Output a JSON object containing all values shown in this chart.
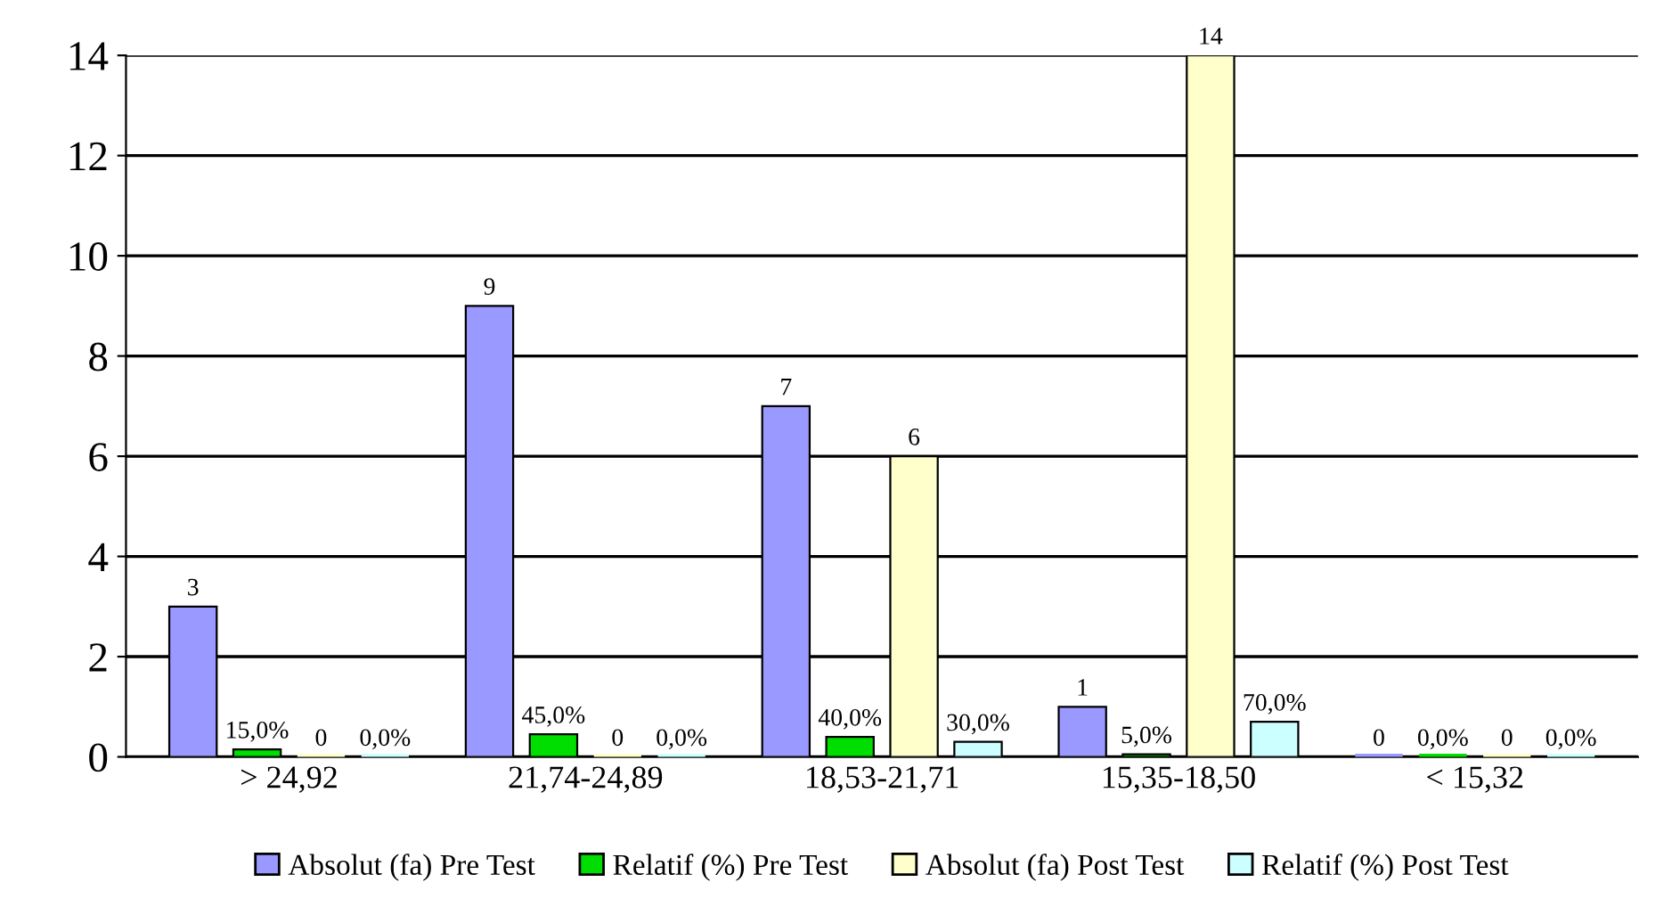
{
  "chart_data": {
    "type": "bar",
    "categories": [
      "> 24,92",
      "21,74-24,89",
      "18,53-21,71",
      "15,35-18,50",
      "< 15,32"
    ],
    "series": [
      {
        "name": "Absolut (fa) Pre Test",
        "color": "#9999ff",
        "values": [
          3,
          9,
          7,
          1,
          0
        ],
        "value_labels": [
          "3",
          "9",
          "7",
          "1",
          "0"
        ]
      },
      {
        "name": "Relatif (%) Pre Test",
        "color": "#00dd00",
        "values": [
          0.15,
          0.45,
          0.4,
          0.05,
          0
        ],
        "value_labels": [
          "15,0%",
          "45,0%",
          "40,0%",
          "5,0%",
          "0,0%"
        ]
      },
      {
        "name": "Absolut (fa) Post Test",
        "color": "#ffffcc",
        "values": [
          0,
          0,
          6,
          14,
          0
        ],
        "value_labels": [
          "0",
          "0",
          "6",
          "14",
          "0"
        ]
      },
      {
        "name": "Relatif (%) Post Test",
        "color": "#ccffff",
        "values": [
          0,
          0,
          0.3,
          0.7,
          0
        ],
        "value_labels": [
          "0,0%",
          "0,0%",
          "30,0%",
          "70,0%",
          "0,0%"
        ]
      }
    ],
    "ylim": [
      0,
      14
    ],
    "yticks": [
      0,
      2,
      4,
      6,
      8,
      10,
      12,
      14
    ],
    "grid": "y",
    "legend": "bottom"
  }
}
